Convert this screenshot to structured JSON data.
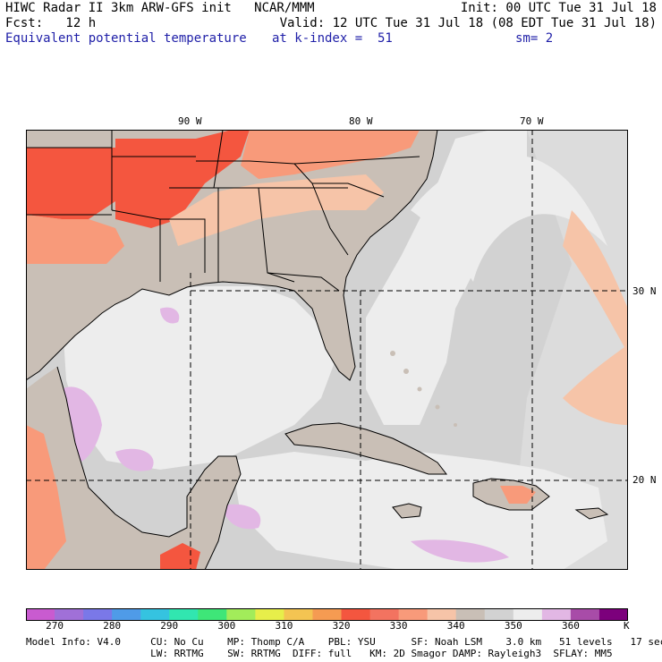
{
  "header": {
    "line1_left": "HIWC Radar II 3km ARW-GFS init   NCAR/MMM",
    "line1_right": "Init: 00 UTC Tue 31 Jul 18",
    "line2_left": "Fcst:   12 h",
    "line2_right": "Valid: 12 UTC Tue 31 Jul 18 (08 EDT Tue 31 Jul 18)",
    "line3_field": "Equivalent potential temperature",
    "line3_level": "at k-index =  51",
    "line3_sm": "sm= 2"
  },
  "map": {
    "lon_labels": [
      "90 W",
      "80 W",
      "70 W"
    ],
    "lat_labels": [
      "30 N",
      "20 N"
    ],
    "colors": {
      "land_gray": "#c9bfb6",
      "ocean_light": "#ededed",
      "ocean_gray": "#d2d2d2",
      "ocean_mid": "#dcdcdc",
      "hot": "#f4563f",
      "warm": "#f89a7a",
      "peach": "#f6c4a8",
      "lilac": "#e2b7e4"
    }
  },
  "colorbar": {
    "colors": [
      "#c95bd0",
      "#a070d8",
      "#7a78e8",
      "#4f9be8",
      "#35c3e0",
      "#31e6b0",
      "#3ee678",
      "#a2ec5a",
      "#e7ee4a",
      "#f4c452",
      "#f59b52",
      "#f4563f",
      "#f37360",
      "#f89a7a",
      "#f6c4a8",
      "#c9bfb6",
      "#d2d2d2",
      "#ededed",
      "#e2b7e4",
      "#a84ca8",
      "#7c007c"
    ],
    "ticks": [
      "270",
      "280",
      "290",
      "300",
      "310",
      "320",
      "330",
      "340",
      "350",
      "360"
    ],
    "unit": "K"
  },
  "footer": {
    "line1": "Model Info: V4.0     CU: No Cu    MP: Thomp C/A    PBL: YSU      SF: Noah LSM    3.0 km   51 levels   17 sec",
    "line2": "                     LW: RRTMG    SW: RRTMG  DIFF: full   KM: 2D Smagor DAMP: Rayleigh3  SFLAY: MM5"
  }
}
